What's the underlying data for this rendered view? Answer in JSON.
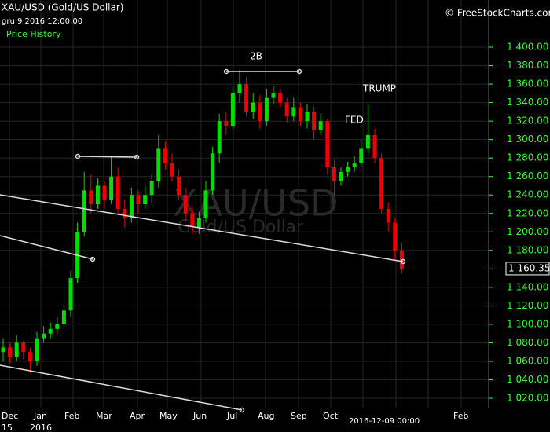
{
  "chart_data": {
    "type": "candlestick",
    "title": "XAU/USD (Gold/US Dollar)",
    "subtitle": "gru 9 2016 12:00:00",
    "legend_label": "Price History",
    "credit": "© FreeStockCharts.com",
    "watermark": "XAU/USD",
    "watermark_sub": "Gold/US Dollar",
    "annotations": [
      "2B",
      "FED",
      "TRUMP"
    ],
    "x_labels": [
      "Dec",
      "15",
      "Jan",
      "2016",
      "Feb",
      "Mar",
      "Apr",
      "May",
      "Jun",
      "Jul",
      "Aug",
      "Sep",
      "Oct",
      "2016-12-09 00:00",
      "Feb"
    ],
    "current_price": 1160.35,
    "current_price_label": "1 160.35",
    "up_color": "#00dd00",
    "down_color": "#ee0000",
    "grid": true,
    "categories": [
      null,
      null,
      null,
      null,
      null,
      null,
      null,
      null,
      null,
      null,
      null,
      null,
      null,
      null,
      null,
      null,
      null,
      null,
      null,
      null,
      null,
      null,
      null,
      null,
      null,
      null,
      null,
      null,
      null,
      null,
      null,
      null,
      null,
      null,
      null,
      null,
      null,
      null,
      null,
      null,
      null,
      null,
      null,
      null,
      null,
      null,
      null,
      null,
      null,
      null,
      null,
      null,
      null,
      null,
      null,
      null,
      null,
      null,
      null,
      null
    ],
    "open": [
      1070,
      1075,
      1065,
      1080,
      1070,
      1060,
      1085,
      1090,
      1095,
      1100,
      1115,
      1150,
      1200,
      1245,
      1230,
      1250,
      1235,
      1260,
      1225,
      1215,
      1240,
      1230,
      1240,
      1255,
      1290,
      1275,
      1260,
      1240,
      1220,
      1205,
      1215,
      1245,
      1285,
      1320,
      1315,
      1350,
      1360,
      1330,
      1340,
      1320,
      1345,
      1350,
      1340,
      1325,
      1335,
      1320,
      1330,
      1310,
      1320,
      1270,
      1255,
      1265,
      1270,
      1275,
      1290,
      1305,
      1280,
      1225,
      1210,
      1180
    ],
    "high": [
      1085,
      1080,
      1088,
      1082,
      1075,
      1092,
      1098,
      1102,
      1108,
      1122,
      1158,
      1210,
      1265,
      1262,
      1258,
      1255,
      1282,
      1270,
      1235,
      1248,
      1245,
      1250,
      1262,
      1305,
      1298,
      1285,
      1268,
      1248,
      1228,
      1222,
      1255,
      1292,
      1328,
      1330,
      1358,
      1375,
      1368,
      1350,
      1348,
      1355,
      1358,
      1355,
      1345,
      1345,
      1340,
      1338,
      1336,
      1328,
      1322,
      1278,
      1270,
      1276,
      1282,
      1298,
      1337,
      1312,
      1285,
      1232,
      1215,
      1188
    ],
    "low": [
      1060,
      1058,
      1060,
      1062,
      1048,
      1055,
      1080,
      1085,
      1090,
      1095,
      1108,
      1145,
      1195,
      1220,
      1225,
      1225,
      1230,
      1218,
      1205,
      1210,
      1220,
      1225,
      1232,
      1248,
      1268,
      1255,
      1235,
      1212,
      1198,
      1198,
      1210,
      1240,
      1275,
      1305,
      1310,
      1340,
      1325,
      1322,
      1312,
      1315,
      1338,
      1335,
      1318,
      1320,
      1315,
      1312,
      1300,
      1305,
      1262,
      1240,
      1250,
      1260,
      1265,
      1270,
      1285,
      1275,
      1220,
      1200,
      1170,
      1155
    ],
    "close": [
      1075,
      1065,
      1080,
      1070,
      1060,
      1085,
      1090,
      1095,
      1100,
      1115,
      1150,
      1200,
      1245,
      1230,
      1250,
      1235,
      1260,
      1225,
      1215,
      1240,
      1230,
      1240,
      1255,
      1290,
      1275,
      1260,
      1240,
      1220,
      1205,
      1215,
      1245,
      1285,
      1320,
      1315,
      1350,
      1360,
      1330,
      1340,
      1320,
      1345,
      1350,
      1340,
      1325,
      1335,
      1320,
      1330,
      1310,
      1320,
      1270,
      1255,
      1265,
      1270,
      1275,
      1290,
      1305,
      1280,
      1225,
      1210,
      1180,
      1160.35
    ],
    "ylim": [
      1010,
      1450
    ],
    "yticks": [
      {
        "value": 1020,
        "label": "1 020.00"
      },
      {
        "value": 1040,
        "label": "1 040.00"
      },
      {
        "value": 1060,
        "label": "1 060.00"
      },
      {
        "value": 1080,
        "label": "1 080.00"
      },
      {
        "value": 1100,
        "label": "1 100.00"
      },
      {
        "value": 1120,
        "label": "1 120.00"
      },
      {
        "value": 1140,
        "label": "1 140.00"
      },
      {
        "value": 1160,
        "label": "1 160.00"
      },
      {
        "value": 1180,
        "label": "1 180.00"
      },
      {
        "value": 1200,
        "label": "1 200.00"
      },
      {
        "value": 1220,
        "label": "1 220.00"
      },
      {
        "value": 1240,
        "label": "1 240.00"
      },
      {
        "value": 1260,
        "label": "1 260.00"
      },
      {
        "value": 1280,
        "label": "1 280.00"
      },
      {
        "value": 1300,
        "label": "1 300.00"
      },
      {
        "value": 1320,
        "label": "1 320.00"
      },
      {
        "value": 1340,
        "label": "1 340.00"
      },
      {
        "value": 1360,
        "label": "1 360.00"
      },
      {
        "value": 1380,
        "label": "1 380.00"
      },
      {
        "value": 1400,
        "label": "1 400.00"
      }
    ]
  }
}
